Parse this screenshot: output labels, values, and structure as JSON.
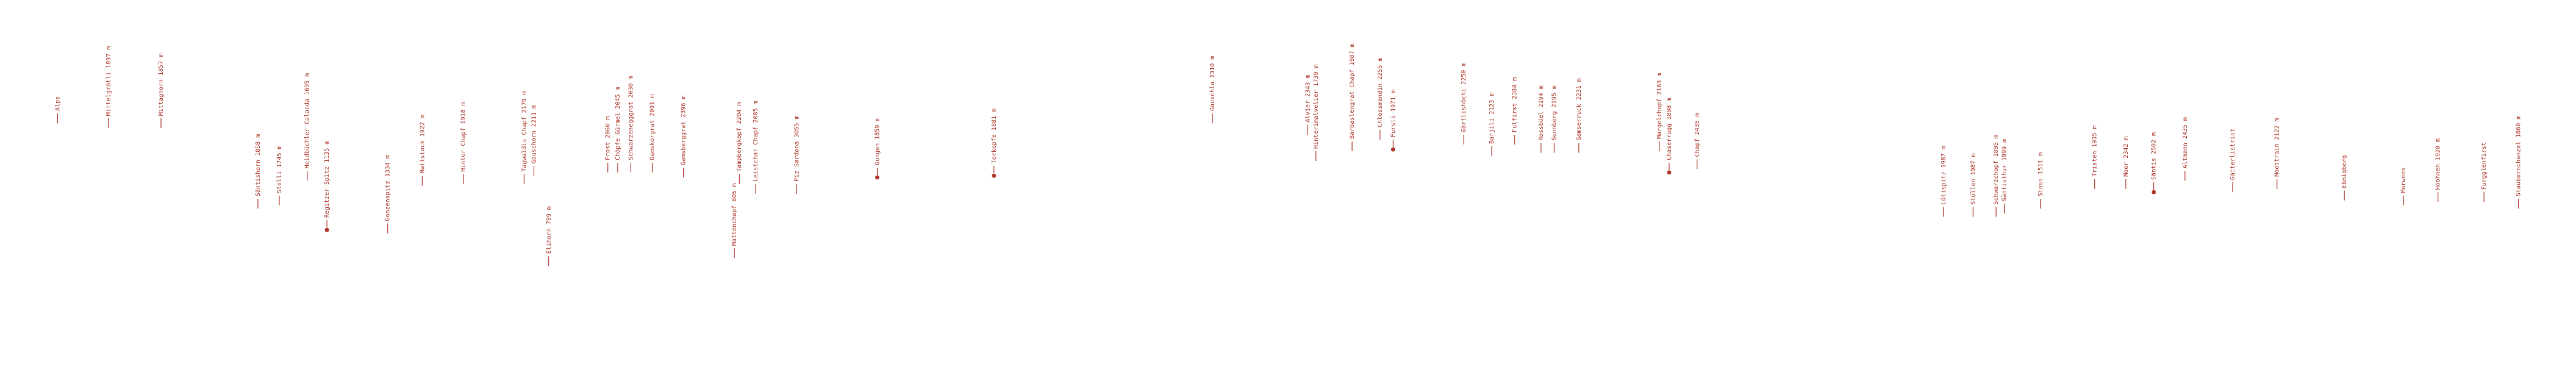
{
  "peaks": [
    {
      "label": "Alps"
    },
    {
      "label": "Mittelgrätli 1897 m"
    },
    {
      "label": "Mittaghorn 1857 m"
    },
    {
      "label": "Säntishorn 1858 m"
    },
    {
      "label": "Stelli 1745 m"
    },
    {
      "label": "Heidbüchler Calanda 1695 m"
    },
    {
      "label": "Regitzer Spitz 1135 m"
    },
    {
      "label": "Gonzenspitz 1334 m"
    },
    {
      "label": "Mattstock 1922 m"
    },
    {
      "label": "Hinter Chapf 1918 m"
    },
    {
      "label": "Tagwaldis Chapf 2179 m"
    },
    {
      "label": "Gauschorn 2211 m"
    },
    {
      "label": "Elihorn 799 m"
    },
    {
      "label": "Frost 2066 m"
    },
    {
      "label": "Chöpfe Gürmel 2045 m"
    },
    {
      "label": "Schwarzenegggrat 2030 m"
    },
    {
      "label": "Gamskorgrat 2091 m"
    },
    {
      "label": "Gamsberggrat 2396 m"
    },
    {
      "label": "Mattenchapf 805 m"
    },
    {
      "label": "Tampbergkopf 2204 m"
    },
    {
      "label": "Leistchar Chapf 2085 m"
    },
    {
      "label": "Piz Sardona 3055 m"
    },
    {
      "label": "Gungen 1859 m"
    },
    {
      "label": "Torkopfe 1881 m"
    },
    {
      "label": "Gauschla 2310 m"
    },
    {
      "label": "Alvier 2343 m"
    },
    {
      "label": "Hinterimalvelier 1739 m"
    },
    {
      "label": "Barbaslengrat Chapf 1987 m"
    },
    {
      "label": "Chlossmandin 2255 m"
    },
    {
      "label": "Fursti 1971 m"
    },
    {
      "label": "Gärtlishöchi 2250 m"
    },
    {
      "label": "Barjili 2123 m"
    },
    {
      "label": "Fulfirst 2384 m"
    },
    {
      "label": "Rossbüel 2194 m"
    },
    {
      "label": "Sennberg 2195 m"
    },
    {
      "label": "Gamserruck 2231 m"
    },
    {
      "label": "Margelchopf 2163 m"
    },
    {
      "label": "Chaserrugg 1898 m"
    },
    {
      "label": "Chapf 2435 m"
    },
    {
      "label": "Lütispitz 1987 m"
    },
    {
      "label": "Stöllen 1987 m"
    },
    {
      "label": "Schwarzchopf 1895 m"
    },
    {
      "label": "Säntisthur 1999 m"
    },
    {
      "label": "Stoss 1511 m"
    },
    {
      "label": "Tristen 1935 m"
    },
    {
      "label": "Moor 2342 m"
    },
    {
      "label": "Säntis 2502 m"
    },
    {
      "label": "Altmann 2435 m"
    },
    {
      "label": "Gätterlistrist"
    },
    {
      "label": "Moostrain 2122 m"
    },
    {
      "label": "Ebnigberg"
    },
    {
      "label": "Marwees"
    },
    {
      "label": "Hoohnen 1920 m"
    },
    {
      "label": "Furgglenfirst"
    },
    {
      "label": "Staubernchanzel 1860 m"
    }
  ]
}
